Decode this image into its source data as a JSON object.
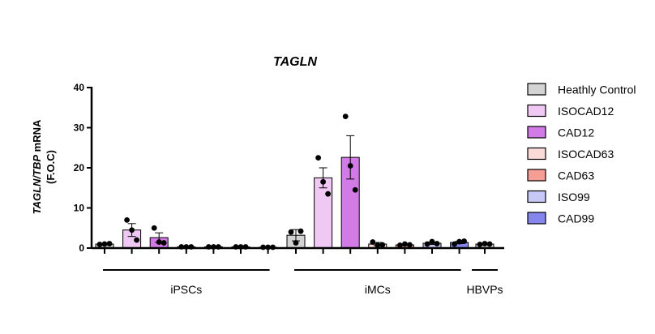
{
  "chart_data": {
    "type": "bar",
    "title": "TAGLN",
    "ylabel": {
      "gene": "TAGLN",
      "separator": "/",
      "reference": "TBP",
      "measure": " mRNA",
      "unit": "(F.O.C)"
    },
    "ylim": [
      0,
      40
    ],
    "yticks": [
      0,
      10,
      20,
      30,
      40
    ],
    "groups": [
      {
        "name": "iPSCs",
        "bars": [
          0,
          1,
          2,
          3,
          4,
          5,
          6
        ]
      },
      {
        "name": "iMCs",
        "bars": [
          7,
          8,
          9,
          10,
          11,
          12,
          13
        ]
      },
      {
        "name": "HBVPs",
        "bars": [
          14
        ]
      }
    ],
    "legend": {
      "position": "right",
      "entries": [
        {
          "name": "Heathly Control",
          "color": "#d3d3d3"
        },
        {
          "name": "ISOCAD12",
          "color": "#efc8f3"
        },
        {
          "name": "CAD12",
          "color": "#d27ae6"
        },
        {
          "name": "ISOCAD63",
          "color": "#fbdbd8"
        },
        {
          "name": "CAD63",
          "color": "#f69d96"
        },
        {
          "name": "ISO99",
          "color": "#c8c8f7"
        },
        {
          "name": "CAD99",
          "color": "#8585ee"
        }
      ]
    },
    "bars": [
      {
        "group": "iPSCs",
        "condition": "Heathly Control",
        "mean": 1.0,
        "sem": 0.1,
        "points": [
          0.9,
          1.0,
          1.1
        ]
      },
      {
        "group": "iPSCs",
        "condition": "ISOCAD12",
        "mean": 4.5,
        "sem": 1.6,
        "points": [
          7.0,
          4.5,
          2.0
        ]
      },
      {
        "group": "iPSCs",
        "condition": "CAD12",
        "mean": 2.6,
        "sem": 1.2,
        "points": [
          5.0,
          1.5,
          1.3
        ]
      },
      {
        "group": "iPSCs",
        "condition": "ISOCAD63",
        "mean": 0.3,
        "sem": 0.05,
        "points": [
          0.3,
          0.3,
          0.3
        ]
      },
      {
        "group": "iPSCs",
        "condition": "CAD63",
        "mean": 0.3,
        "sem": 0.05,
        "points": [
          0.3,
          0.3,
          0.3
        ]
      },
      {
        "group": "iPSCs",
        "condition": "ISO99",
        "mean": 0.3,
        "sem": 0.05,
        "points": [
          0.3,
          0.3,
          0.3
        ]
      },
      {
        "group": "iPSCs",
        "condition": "CAD99",
        "mean": 0.2,
        "sem": 0.05,
        "points": [
          0.2,
          0.2,
          0.2
        ]
      },
      {
        "group": "iMCs",
        "condition": "Heathly Control",
        "mean": 3.2,
        "sem": 1.4,
        "points": [
          4.0,
          1.3,
          4.2
        ]
      },
      {
        "group": "iMCs",
        "condition": "ISOCAD12",
        "mean": 17.5,
        "sem": 2.5,
        "points": [
          22.5,
          16.5,
          13.5
        ]
      },
      {
        "group": "iMCs",
        "condition": "CAD12",
        "mean": 22.6,
        "sem": 5.4,
        "points": [
          32.8,
          20.5,
          14.5
        ]
      },
      {
        "group": "iMCs",
        "condition": "ISOCAD63",
        "mean": 1.0,
        "sem": 0.4,
        "points": [
          1.5,
          0.7,
          0.8
        ]
      },
      {
        "group": "iMCs",
        "condition": "CAD63",
        "mean": 0.8,
        "sem": 0.15,
        "points": [
          0.7,
          1.0,
          0.8
        ]
      },
      {
        "group": "iMCs",
        "condition": "ISO99",
        "mean": 1.2,
        "sem": 0.3,
        "points": [
          1.0,
          1.6,
          1.1
        ]
      },
      {
        "group": "iMCs",
        "condition": "CAD99",
        "mean": 1.4,
        "sem": 0.3,
        "points": [
          1.0,
          1.6,
          1.7
        ]
      },
      {
        "group": "HBVPs",
        "condition": "Heathly Control",
        "mean": 1.0,
        "sem": 0.1,
        "points": [
          0.9,
          1.1,
          1.0
        ]
      }
    ]
  }
}
